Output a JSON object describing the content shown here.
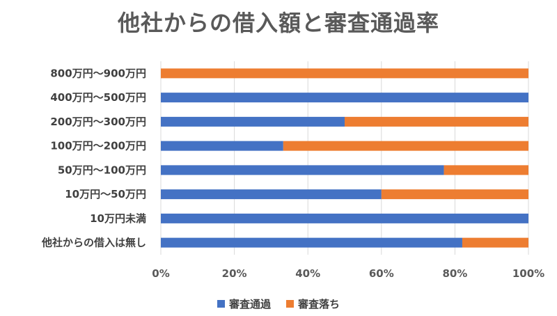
{
  "chart_data": {
    "type": "bar",
    "orientation": "horizontal",
    "stacked": "percent",
    "title": "他社からの借入額と審査通過率",
    "categories": [
      "800万円～900万円",
      "400万円～500万円",
      "200万円～300万円",
      "100万円～200万円",
      "50万円～100万円",
      "10万円～50万円",
      "10万円未満",
      "他社からの借入は無し"
    ],
    "series": [
      {
        "name": "審査通過",
        "color": "#4472C4",
        "values": [
          0,
          100,
          50,
          33.3,
          77,
          60,
          100,
          82
        ]
      },
      {
        "name": "審査落ち",
        "color": "#ED7D31",
        "values": [
          100,
          0,
          50,
          66.7,
          23,
          40,
          0,
          18
        ]
      }
    ],
    "xticks": [
      "0%",
      "20%",
      "40%",
      "60%",
      "80%",
      "100%"
    ],
    "xlim": [
      0,
      100
    ],
    "grid": "vertical",
    "legend_position": "bottom"
  }
}
